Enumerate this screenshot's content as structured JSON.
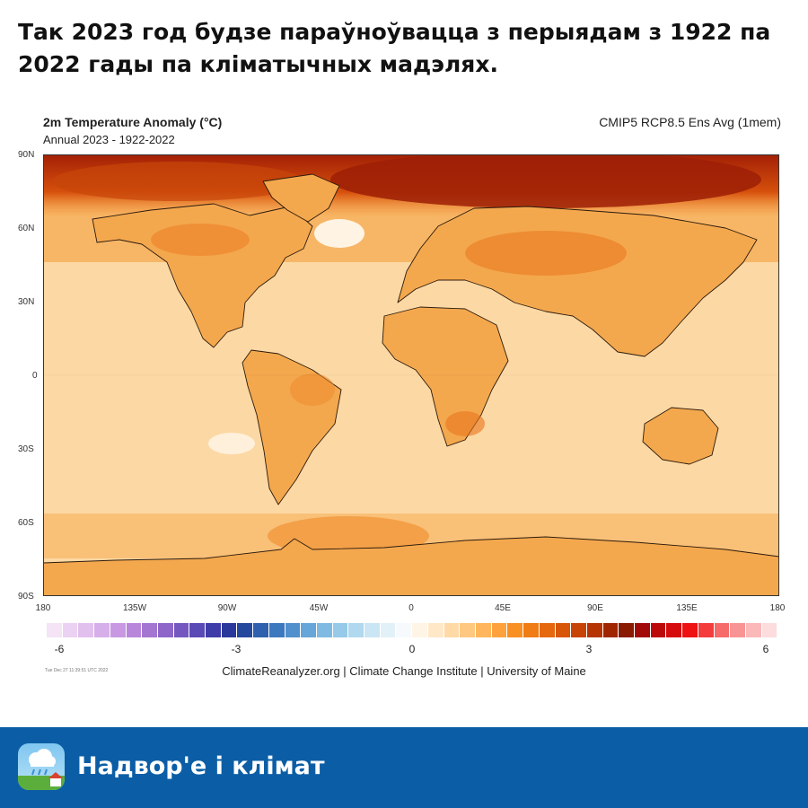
{
  "headline": "Так 2023 год будзе параўноўвацца з перыядам з 1922 па 2022 гады па кліматычных мадэлях.",
  "map": {
    "title": "2m Temperature Anomaly (°C)",
    "subtitle": "Annual 2023 - 1922-2022",
    "dataset": "CMIP5 RCP8.5 Ens Avg (1mem)",
    "lat_labels": [
      "90N",
      "60N",
      "30N",
      "0",
      "30S",
      "60S",
      "90S"
    ],
    "lon_labels": [
      "180",
      "135W",
      "90W",
      "45W",
      "0",
      "45E",
      "90E",
      "135E",
      "180"
    ],
    "field_colors": {
      "ocean_base": "#fcd8a4",
      "land_base": "#f6b462",
      "arctic": "#a32006",
      "warm": "#ef8a2a",
      "cool_spot": "#fff4e4"
    }
  },
  "colorbar": {
    "tick_labels": [
      "-6",
      "-3",
      "0",
      "3",
      "6"
    ],
    "colors": [
      "#f4e4f6",
      "#ecd2f2",
      "#e2c0ee",
      "#d6aeea",
      "#c898e2",
      "#b886da",
      "#a476d2",
      "#8e66ca",
      "#7458c0",
      "#5a4ab6",
      "#3e3ca8",
      "#2a389c",
      "#24489e",
      "#2e60ae",
      "#3c78be",
      "#5090cc",
      "#66a6d8",
      "#7ebae2",
      "#96cae8",
      "#b0d8ee",
      "#cae6f4",
      "#e2f0f8",
      "#f6fafc",
      "#fff5e6",
      "#ffe8c8",
      "#ffd9a6",
      "#ffc880",
      "#ffb65c",
      "#ffa23c",
      "#f89024",
      "#f07c16",
      "#e6680e",
      "#d85608",
      "#c84406",
      "#b63404",
      "#a02602",
      "#8a1a02",
      "#a20a0a",
      "#bc0a0a",
      "#d60c0c",
      "#ee1212",
      "#f43c3c",
      "#f66a6a",
      "#f89494",
      "#fab8b8",
      "#fcdcdc"
    ]
  },
  "timestamp": "Tue Dec 27 11:39:51 UTC 2022",
  "credit": "ClimateReanalyzer.org | Climate Change Institute | University of Maine",
  "footer": {
    "brand": "Надвор'е і клімат",
    "icon": "weather-cloud-rain-house-icon"
  }
}
